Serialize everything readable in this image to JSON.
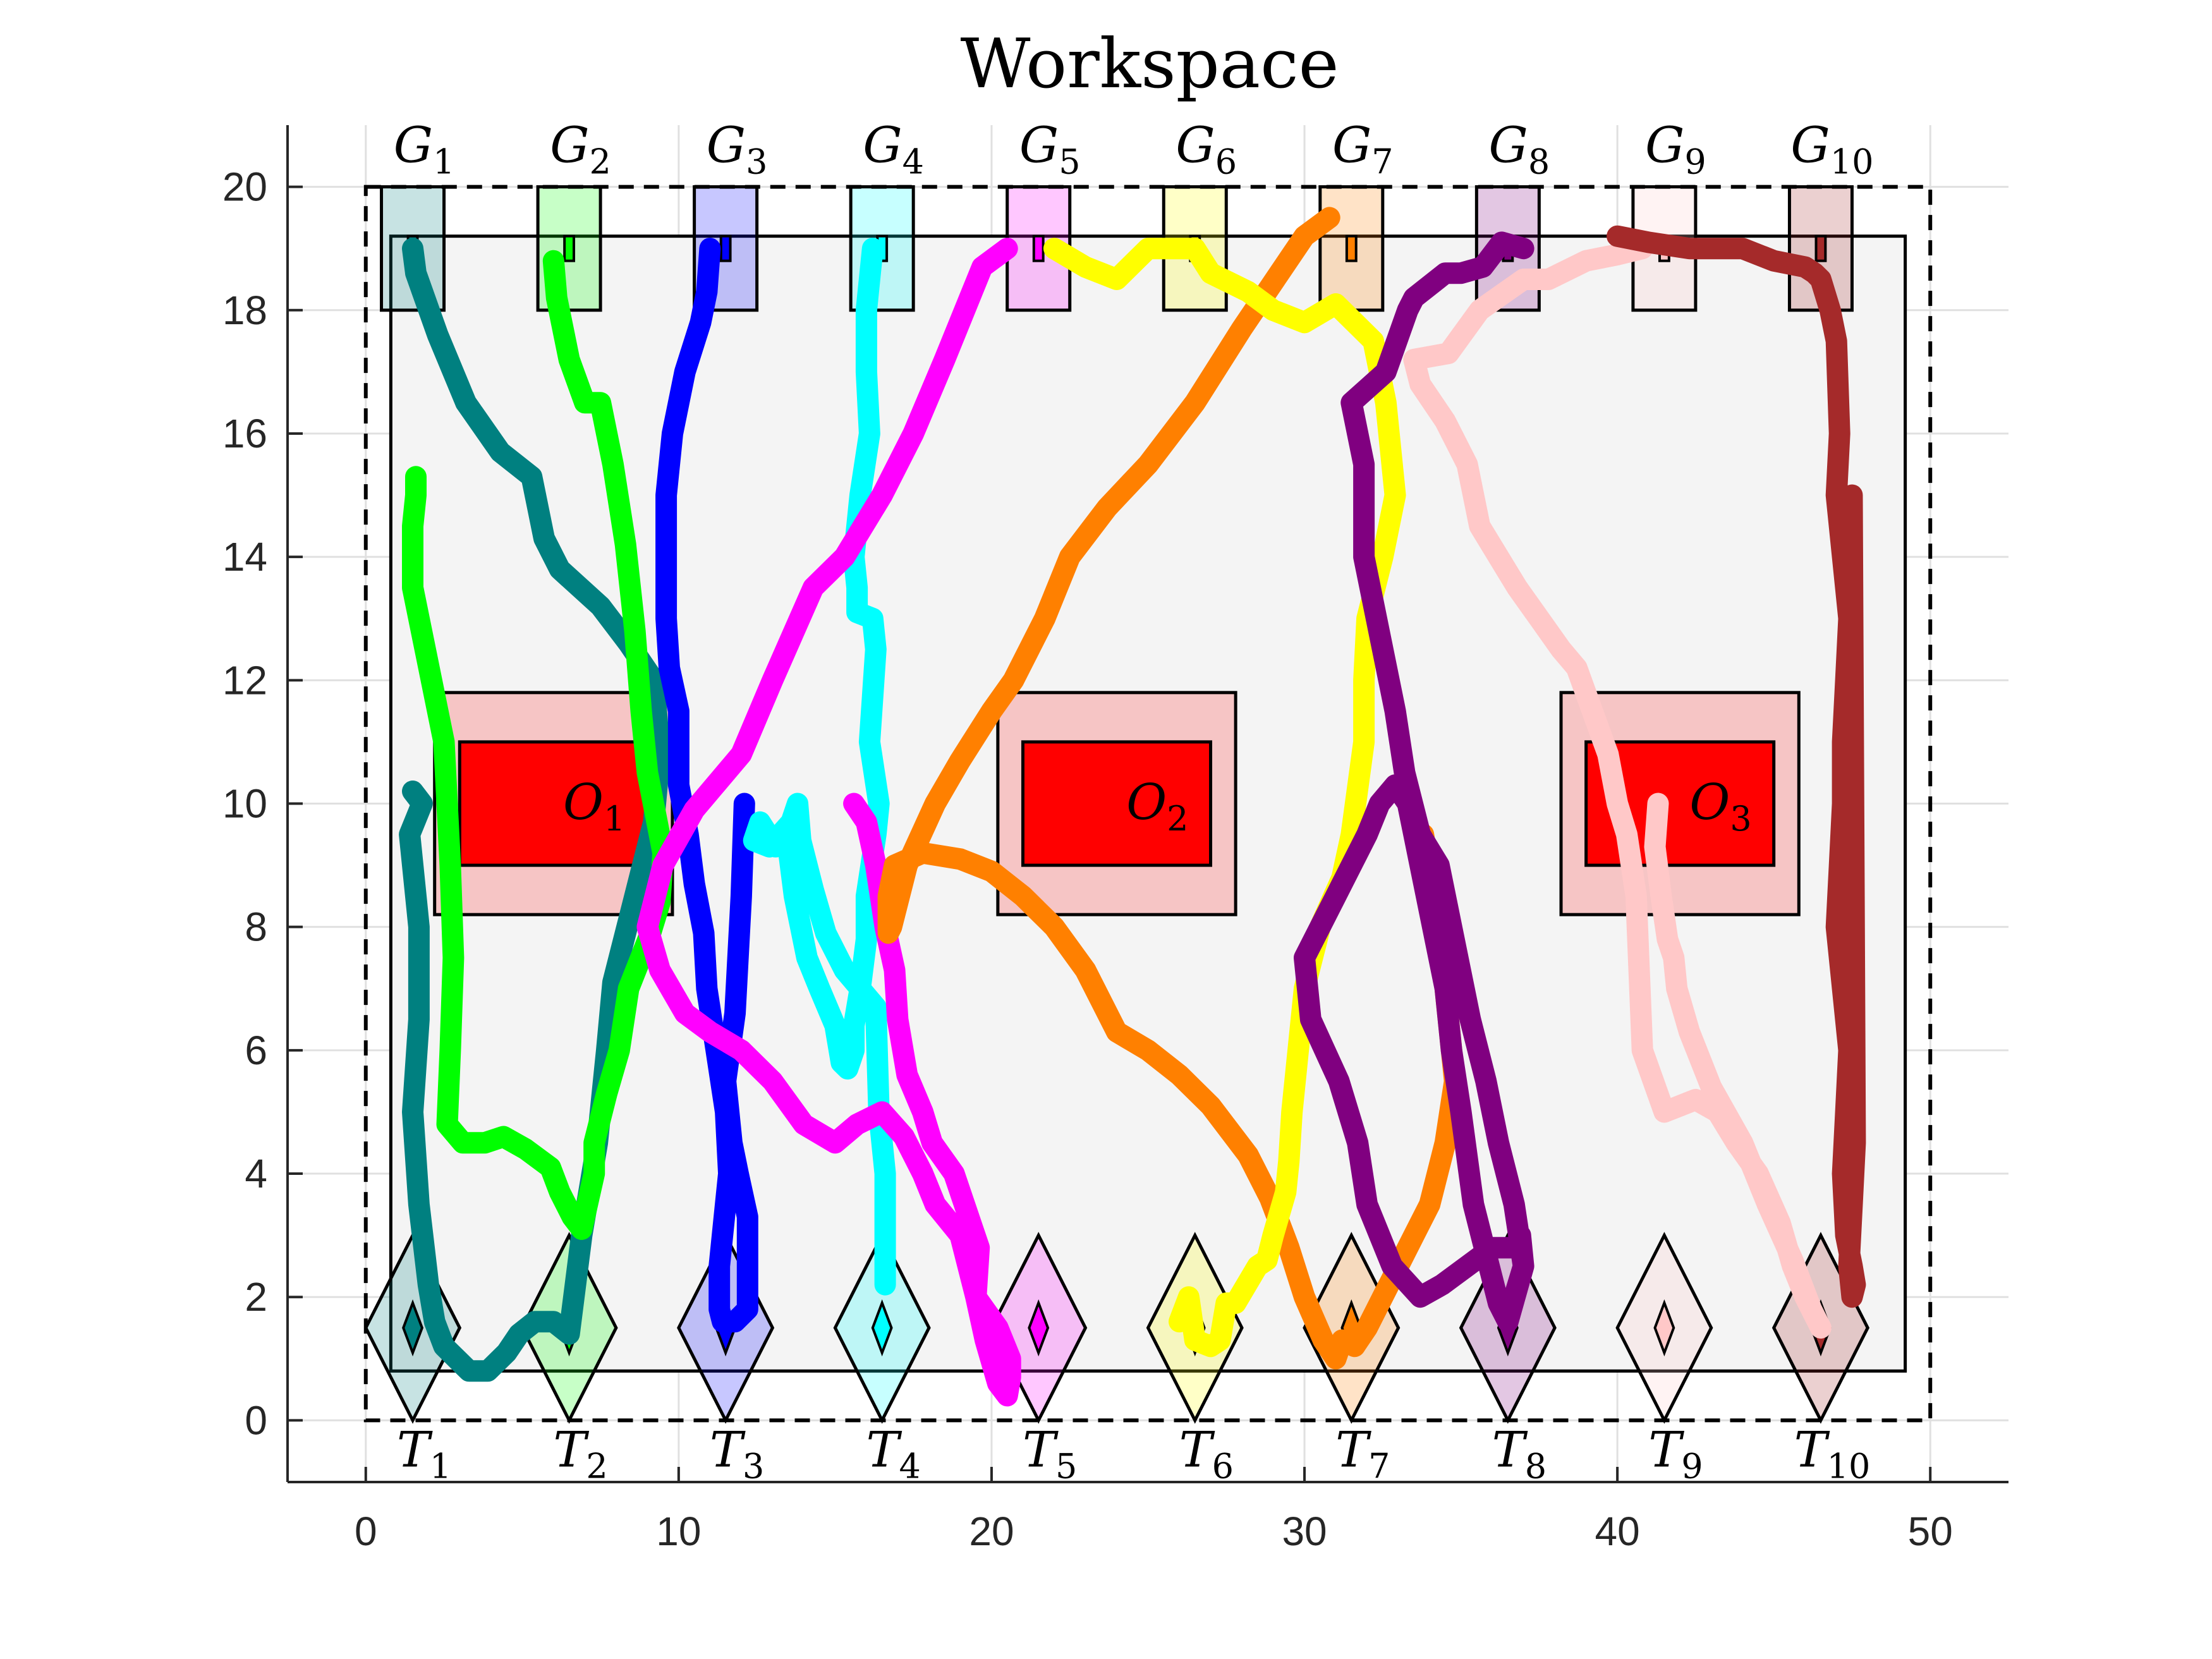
{
  "chart_data": {
    "type": "line",
    "title": "Workspace",
    "xlabel": "",
    "ylabel": "",
    "xlim": [
      -2.5,
      52.5
    ],
    "ylim": [
      -1,
      21
    ],
    "xticks": [
      0,
      10,
      20,
      30,
      40,
      50
    ],
    "yticks": [
      0,
      2,
      4,
      6,
      8,
      10,
      12,
      14,
      16,
      18,
      20
    ],
    "grid": true,
    "workspace_boundary": {
      "x": [
        0,
        50
      ],
      "y": [
        0,
        20
      ]
    },
    "inner_region": {
      "x": [
        0.8,
        49.2
      ],
      "y": [
        0.8,
        19.2
      ]
    },
    "obstacles": [
      {
        "label": "O",
        "sub": "1",
        "core": {
          "x": [
            3,
            9
          ],
          "y": [
            9,
            11
          ]
        },
        "buffer": {
          "x": [
            2.2,
            9.8
          ],
          "y": [
            8.2,
            11.8
          ]
        }
      },
      {
        "label": "O",
        "sub": "2",
        "core": {
          "x": [
            21,
            27
          ],
          "y": [
            9,
            11
          ]
        },
        "buffer": {
          "x": [
            20.2,
            27.8
          ],
          "y": [
            8.2,
            11.8
          ]
        }
      },
      {
        "label": "O",
        "sub": "3",
        "core": {
          "x": [
            39,
            45
          ],
          "y": [
            9,
            11
          ]
        },
        "buffer": {
          "x": [
            38.2,
            45.8
          ],
          "y": [
            8.2,
            11.8
          ]
        }
      }
    ],
    "goals": [
      {
        "label": "G",
        "sub": "1",
        "x": 1.5,
        "color": "#008080"
      },
      {
        "label": "G",
        "sub": "2",
        "x": 6.5,
        "color": "#00ff00"
      },
      {
        "label": "G",
        "sub": "3",
        "x": 11.5,
        "color": "#0000ff"
      },
      {
        "label": "G",
        "sub": "4",
        "x": 16.5,
        "color": "#00ffff"
      },
      {
        "label": "G",
        "sub": "5",
        "x": 21.5,
        "color": "#ff00ff"
      },
      {
        "label": "G",
        "sub": "6",
        "x": 26.5,
        "color": "#ffff00"
      },
      {
        "label": "G",
        "sub": "7",
        "x": 31.5,
        "color": "#ff8000"
      },
      {
        "label": "G",
        "sub": "8",
        "x": 36.5,
        "color": "#800080"
      },
      {
        "label": "G",
        "sub": "9",
        "x": 41.5,
        "color": "#ffc8c8"
      },
      {
        "label": "G",
        "sub": "10",
        "x": 46.5,
        "color": "#a52a2a"
      }
    ],
    "goal_box": {
      "half_width": 1.0,
      "y": [
        18,
        20
      ]
    },
    "targets": [
      {
        "label": "T",
        "sub": "1",
        "x": 1.5,
        "color": "#008080"
      },
      {
        "label": "T",
        "sub": "2",
        "x": 6.5,
        "color": "#00ff00"
      },
      {
        "label": "T",
        "sub": "3",
        "x": 11.5,
        "color": "#0000ff"
      },
      {
        "label": "T",
        "sub": "4",
        "x": 16.5,
        "color": "#00ffff"
      },
      {
        "label": "T",
        "sub": "5",
        "x": 21.5,
        "color": "#ff00ff"
      },
      {
        "label": "T",
        "sub": "6",
        "x": 26.5,
        "color": "#ffff00"
      },
      {
        "label": "T",
        "sub": "7",
        "x": 31.5,
        "color": "#ff8000"
      },
      {
        "label": "T",
        "sub": "8",
        "x": 36.5,
        "color": "#800080"
      },
      {
        "label": "T",
        "sub": "9",
        "x": 41.5,
        "color": "#ffc8c8"
      },
      {
        "label": "T",
        "sub": "10",
        "x": 46.5,
        "color": "#a52a2a"
      }
    ],
    "target_diamond": {
      "center_y": 1.5,
      "half_width": 1.5,
      "half_height": 1.5
    },
    "series": [
      {
        "color": "#008080",
        "x": [
          1.5,
          1.6,
          2.3,
          3.2,
          4.3,
          5.3,
          5.7,
          6.2,
          7.5,
          8.4,
          9.2,
          9.4,
          9.2,
          8.6,
          7.9,
          7.7,
          7.4,
          6.9,
          6.5,
          6.0,
          5.4,
          4.9,
          4.5,
          3.9,
          3.3,
          2.9,
          2.5,
          2.2,
          2.0,
          1.7,
          1.5,
          1.7,
          1.7,
          1.4,
          1.8,
          1.5
        ],
        "y": [
          19.0,
          18.6,
          17.6,
          16.5,
          15.7,
          15.3,
          14.3,
          13.8,
          13.2,
          12.6,
          12.0,
          10.8,
          9.7,
          8.5,
          7.1,
          6.0,
          4.5,
          3.0,
          1.4,
          1.6,
          1.6,
          1.4,
          1.1,
          0.8,
          0.8,
          1.0,
          1.2,
          1.6,
          2.2,
          3.5,
          5.0,
          6.5,
          8.0,
          9.5,
          10.0,
          10.2
        ]
      },
      {
        "color": "#00ff00",
        "x": [
          6.0,
          6.1,
          6.5,
          7.0,
          7.5,
          7.7,
          7.9,
          8.3,
          8.6,
          8.8,
          9.0,
          9.5,
          9.4,
          9.1,
          8.4,
          8.1,
          7.7,
          7.3,
          7.3,
          6.9,
          6.6,
          6.2,
          5.9,
          5.1,
          4.4,
          3.8,
          3.1,
          2.6,
          2.7,
          2.8,
          2.7,
          2.5,
          1.9,
          1.5,
          1.5,
          1.6,
          1.6
        ],
        "y": [
          18.8,
          18.2,
          17.2,
          16.5,
          16.5,
          16.0,
          15.5,
          14.2,
          12.8,
          11.5,
          10.5,
          9.2,
          8.4,
          7.9,
          7.0,
          6.0,
          5.3,
          4.5,
          4.0,
          3.1,
          3.3,
          3.7,
          4.1,
          4.4,
          4.6,
          4.5,
          4.5,
          4.8,
          6.0,
          7.5,
          9.0,
          11.0,
          12.5,
          13.5,
          14.5,
          15.0,
          15.3
        ]
      },
      {
        "color": "#0000ff",
        "x": [
          11.0,
          10.9,
          10.7,
          10.2,
          9.8,
          9.6,
          9.6,
          9.6,
          9.7,
          10.0,
          10.0,
          10.3,
          10.5,
          10.8,
          10.9,
          11.2,
          11.5,
          11.6,
          11.5,
          11.3,
          11.3,
          11.4,
          11.8,
          12.2,
          12.2,
          11.9,
          11.7,
          11.5,
          11.8,
          12.0,
          12.1
        ],
        "y": [
          19.0,
          18.3,
          17.8,
          17.0,
          16.0,
          15.0,
          14.0,
          13.0,
          12.2,
          11.5,
          10.3,
          9.5,
          8.7,
          7.9,
          7.0,
          6.0,
          5.0,
          4.0,
          3.5,
          2.5,
          1.8,
          1.6,
          1.6,
          1.8,
          3.3,
          4.0,
          4.5,
          5.5,
          6.6,
          8.5,
          10.0
        ]
      },
      {
        "color": "#00ffff",
        "x": [
          16.2,
          16.0,
          16.0,
          16.1,
          15.8,
          15.6,
          15.7,
          15.7,
          16.2,
          16.3,
          16.1,
          16.4,
          16.3,
          16.0,
          16.0,
          15.8,
          15.6,
          15.6,
          15.4,
          15.2,
          15.0,
          14.5,
          14.1,
          13.7,
          13.5,
          13.3,
          13.1,
          12.6,
          12.4,
          12.9,
          13.6,
          13.8,
          13.9,
          14.3,
          14.7,
          15.3,
          16.3,
          16.4,
          16.6,
          16.6,
          16.6
        ],
        "y": [
          19.0,
          18.0,
          17.0,
          16.0,
          15.0,
          14.0,
          13.5,
          13.1,
          13.0,
          12.5,
          11.0,
          10.0,
          9.5,
          8.5,
          7.8,
          7.0,
          6.4,
          6.0,
          5.7,
          5.8,
          6.4,
          7.0,
          7.5,
          8.5,
          9.3,
          9.4,
          9.3,
          9.7,
          9.4,
          9.3,
          9.7,
          10.0,
          9.4,
          8.6,
          7.9,
          7.3,
          6.7,
          5.0,
          4.0,
          3.0,
          2.2
        ]
      },
      {
        "color": "#ff00ff",
        "x": [
          20.5,
          19.7,
          18.5,
          17.5,
          16.5,
          15.3,
          14.3,
          13.0,
          12.0,
          10.5,
          9.5,
          9.0,
          9.4,
          10.2,
          11.0,
          12.0,
          13.0,
          14.0,
          15.0,
          15.7,
          16.5,
          17.2,
          17.8,
          18.2,
          19.0,
          19.5,
          20.2,
          20.6,
          20.6,
          20.5,
          20.2,
          19.8,
          19.5,
          19.6,
          18.8,
          18.1,
          17.8,
          17.3,
          17.0,
          16.9,
          16.6,
          16.3,
          16.0,
          15.6
        ],
        "y": [
          19.0,
          18.7,
          17.2,
          16.0,
          15.0,
          14.0,
          13.5,
          12.0,
          10.8,
          9.9,
          9.0,
          8.0,
          7.3,
          6.6,
          6.3,
          6.0,
          5.5,
          4.8,
          4.5,
          4.8,
          5.0,
          4.6,
          4.0,
          3.5,
          3.0,
          2.0,
          1.5,
          1.0,
          0.7,
          0.4,
          0.6,
          1.3,
          2.0,
          2.8,
          4.0,
          4.5,
          5.0,
          5.6,
          6.5,
          7.3,
          8.0,
          9.0,
          9.7,
          10.0
        ]
      },
      {
        "color": "#ff8000",
        "x": [
          30.8,
          30.0,
          29.2,
          28.0,
          26.5,
          25.0,
          23.7,
          22.5,
          21.7,
          20.7,
          20.0,
          19.0,
          18.2,
          17.3,
          16.8,
          16.7,
          16.7,
          16.9,
          17.8,
          19.0,
          20.0,
          21.0,
          22.0,
          23.0,
          24.0,
          25.0,
          26.0,
          27.0,
          28.2,
          28.9,
          29.5,
          30.0,
          30.6,
          31.0,
          31.2,
          31.6,
          32.0,
          32.5,
          33.0,
          33.5,
          34.0,
          34.5,
          34.8,
          34.5,
          34.3,
          33.8
        ],
        "y": [
          19.5,
          19.2,
          18.6,
          17.7,
          16.5,
          15.5,
          14.8,
          14.0,
          13.0,
          12.0,
          11.5,
          10.7,
          10.0,
          9.0,
          8.0,
          7.9,
          8.5,
          9.0,
          9.2,
          9.1,
          8.9,
          8.5,
          8.0,
          7.3,
          6.3,
          6.0,
          5.6,
          5.1,
          4.3,
          3.6,
          2.8,
          2.0,
          1.3,
          1.0,
          1.3,
          1.2,
          1.5,
          2.0,
          2.5,
          3.0,
          3.5,
          4.5,
          5.5,
          7.0,
          8.0,
          9.5
        ]
      },
      {
        "color": "#ffff00",
        "x": [
          22.0,
          23.0,
          24.0,
          25.0,
          26.5,
          27.0,
          28.2,
          29.0,
          30.0,
          31.0,
          32.2,
          32.6,
          32.9,
          32.5,
          32.0,
          31.9,
          31.9,
          31.5,
          31.2,
          30.5,
          30.0,
          29.6,
          29.5,
          29.4,
          29.0,
          28.8,
          28.5,
          27.8,
          27.5,
          27.3,
          27.0,
          26.5,
          26.3,
          26.0
        ],
        "y": [
          19.0,
          18.7,
          18.5,
          19.0,
          19.0,
          18.6,
          18.3,
          18.0,
          17.8,
          18.1,
          17.5,
          16.5,
          15.0,
          14.0,
          13.0,
          12.0,
          11.0,
          9.5,
          8.8,
          8.0,
          7.0,
          5.0,
          4.2,
          3.7,
          3.0,
          2.6,
          2.5,
          1.9,
          1.9,
          1.3,
          1.2,
          1.3,
          2.0,
          1.6
        ]
      },
      {
        "color": "#800080",
        "x": [
          37.0,
          36.3,
          35.7,
          35.0,
          34.5,
          33.5,
          33.3,
          32.6,
          31.5,
          31.9,
          31.9,
          32.5,
          32.9,
          33.2,
          33.7,
          34.3,
          34.7,
          35.3,
          35.8,
          36.2,
          36.7,
          37.0,
          36.5,
          36.2,
          35.4,
          35.0,
          34.7,
          34.5,
          34.1,
          33.7,
          33.3,
          32.9,
          32.4,
          32.0,
          31.0,
          30.0,
          30.2,
          31.1,
          31.7,
          32.0,
          32.8,
          33.7,
          34.4,
          35.2,
          36.0,
          36.8,
          36.9,
          37.0,
          36.7
        ],
        "y": [
          19.0,
          19.1,
          18.7,
          18.6,
          18.6,
          18.2,
          18.0,
          17.0,
          16.5,
          15.5,
          14.0,
          12.5,
          11.5,
          10.5,
          9.5,
          9.0,
          8.0,
          6.5,
          5.5,
          4.5,
          3.5,
          2.5,
          1.6,
          1.9,
          3.5,
          5.0,
          6.0,
          7.0,
          8.0,
          9.0,
          10.0,
          10.3,
          10.0,
          9.5,
          8.5,
          7.5,
          6.5,
          5.5,
          4.5,
          3.5,
          2.5,
          2.0,
          2.2,
          2.5,
          2.8,
          2.8,
          3.0,
          2.5,
          2.0
        ]
      },
      {
        "color": "#ffc8c8",
        "x": [
          40.8,
          40.0,
          39.0,
          37.8,
          37.0,
          35.6,
          34.6,
          33.5,
          33.7,
          34.5,
          35.2,
          35.6,
          36.2,
          36.8,
          37.5,
          38.2,
          38.7,
          39.2,
          39.7,
          40.0,
          40.3,
          40.6,
          40.8,
          41.5,
          42.5,
          43.2,
          43.8,
          44.5,
          45.2,
          45.6,
          46.0,
          46.3,
          46.5,
          46.2,
          45.6,
          44.8,
          44.0,
          43.0,
          42.3,
          41.9,
          41.8,
          41.6,
          41.4,
          41.2,
          41.3
        ],
        "y": [
          19.0,
          18.9,
          18.8,
          18.5,
          18.5,
          18.0,
          17.3,
          17.2,
          16.8,
          16.2,
          15.5,
          14.5,
          14.0,
          13.5,
          13.0,
          12.5,
          12.2,
          11.5,
          10.8,
          10.0,
          9.5,
          8.5,
          6.0,
          5.0,
          5.2,
          5.0,
          4.5,
          4.0,
          3.2,
          2.5,
          2.0,
          1.7,
          1.5,
          1.8,
          2.6,
          3.5,
          4.5,
          5.4,
          6.3,
          7.0,
          7.5,
          7.8,
          8.5,
          9.3,
          10.0
        ]
      },
      {
        "color": "#a52a2a",
        "x": [
          40.0,
          41.0,
          42.3,
          43.2,
          44.0,
          45.0,
          46.0,
          46.3,
          46.5,
          46.8,
          47.0,
          47.1,
          47.0,
          47.2,
          47.4,
          47.3,
          47.2,
          47.2,
          47.1,
          47.0,
          47.2,
          47.4,
          47.3,
          47.2,
          47.3,
          47.5,
          47.6,
          47.5,
          47.4,
          47.5,
          47.6,
          47.5
        ],
        "y": [
          19.2,
          19.1,
          19.0,
          19.0,
          19.0,
          18.8,
          18.7,
          18.6,
          18.5,
          18.0,
          17.5,
          16.0,
          15.0,
          14.0,
          13.0,
          12.0,
          11.0,
          10.0,
          9.0,
          8.0,
          7.0,
          6.0,
          5.0,
          4.0,
          3.0,
          2.5,
          2.2,
          2.0,
          2.5,
          3.5,
          4.5,
          15.0
        ]
      }
    ]
  }
}
